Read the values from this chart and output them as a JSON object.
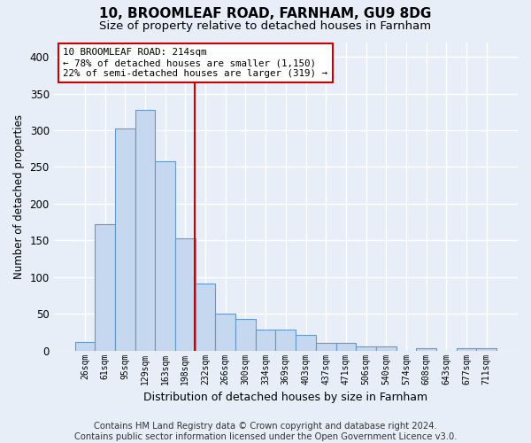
{
  "title1": "10, BROOMLEAF ROAD, FARNHAM, GU9 8DG",
  "title2": "Size of property relative to detached houses in Farnham",
  "xlabel": "Distribution of detached houses by size in Farnham",
  "ylabel": "Number of detached properties",
  "bar_labels": [
    "26sqm",
    "61sqm",
    "95sqm",
    "129sqm",
    "163sqm",
    "198sqm",
    "232sqm",
    "266sqm",
    "300sqm",
    "334sqm",
    "369sqm",
    "403sqm",
    "437sqm",
    "471sqm",
    "506sqm",
    "540sqm",
    "574sqm",
    "608sqm",
    "643sqm",
    "677sqm",
    "711sqm"
  ],
  "bar_values": [
    12,
    172,
    302,
    328,
    258,
    153,
    91,
    50,
    43,
    28,
    28,
    21,
    10,
    10,
    5,
    5,
    0,
    3,
    0,
    3,
    3
  ],
  "bar_color": "#c5d8f0",
  "bar_edge_color": "#6399c8",
  "reference_line_value": 214,
  "reference_line_color": "#cc0000",
  "annotation_text": "10 BROOMLEAF ROAD: 214sqm\n← 78% of detached houses are smaller (1,150)\n22% of semi-detached houses are larger (319) →",
  "annotation_box_facecolor": "#ffffff",
  "annotation_box_edgecolor": "#cc0000",
  "ylim": [
    0,
    420
  ],
  "yticks": [
    0,
    50,
    100,
    150,
    200,
    250,
    300,
    350,
    400
  ],
  "footer_text": "Contains HM Land Registry data © Crown copyright and database right 2024.\nContains public sector information licensed under the Open Government Licence v3.0.",
  "background_color": "#e8eef8",
  "plot_background_color": "#e8eef8",
  "grid_color": "#ffffff",
  "title_fontsize": 11,
  "subtitle_fontsize": 9.5,
  "footer_fontsize": 7.2,
  "ylabel_fontsize": 8.5,
  "xlabel_fontsize": 9
}
